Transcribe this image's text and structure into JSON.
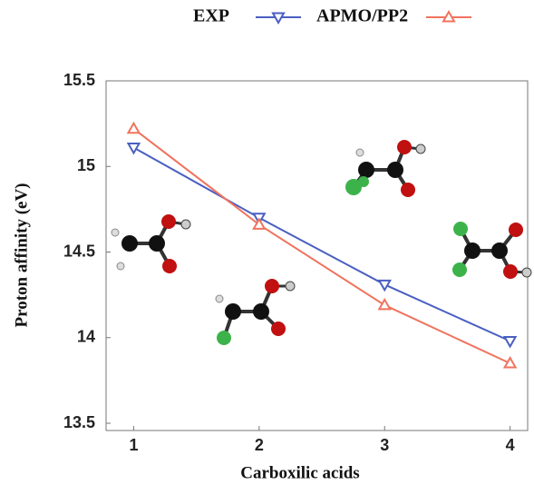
{
  "chart_data": {
    "type": "line",
    "x_label": "Carboxilic acids",
    "y_label": "Proton affinity (eV)",
    "x": [
      1,
      2,
      3,
      4
    ],
    "series": [
      {
        "name": "EXP",
        "color": "#4a5fc1",
        "marker": "triangle-down",
        "values": [
          15.11,
          14.7,
          14.31,
          13.98
        ]
      },
      {
        "name": "APMO/PP2",
        "color": "#f0735e",
        "marker": "triangle-up",
        "values": [
          15.22,
          14.66,
          14.19,
          13.85
        ]
      }
    ],
    "xlim": [
      0.78,
      4.14
    ],
    "xticks": [
      1,
      2,
      3,
      4
    ],
    "ylim": [
      13.5,
      15.5
    ],
    "yticks": [
      13.5,
      14,
      14.5,
      15,
      15.5
    ],
    "grid": false
  }
}
